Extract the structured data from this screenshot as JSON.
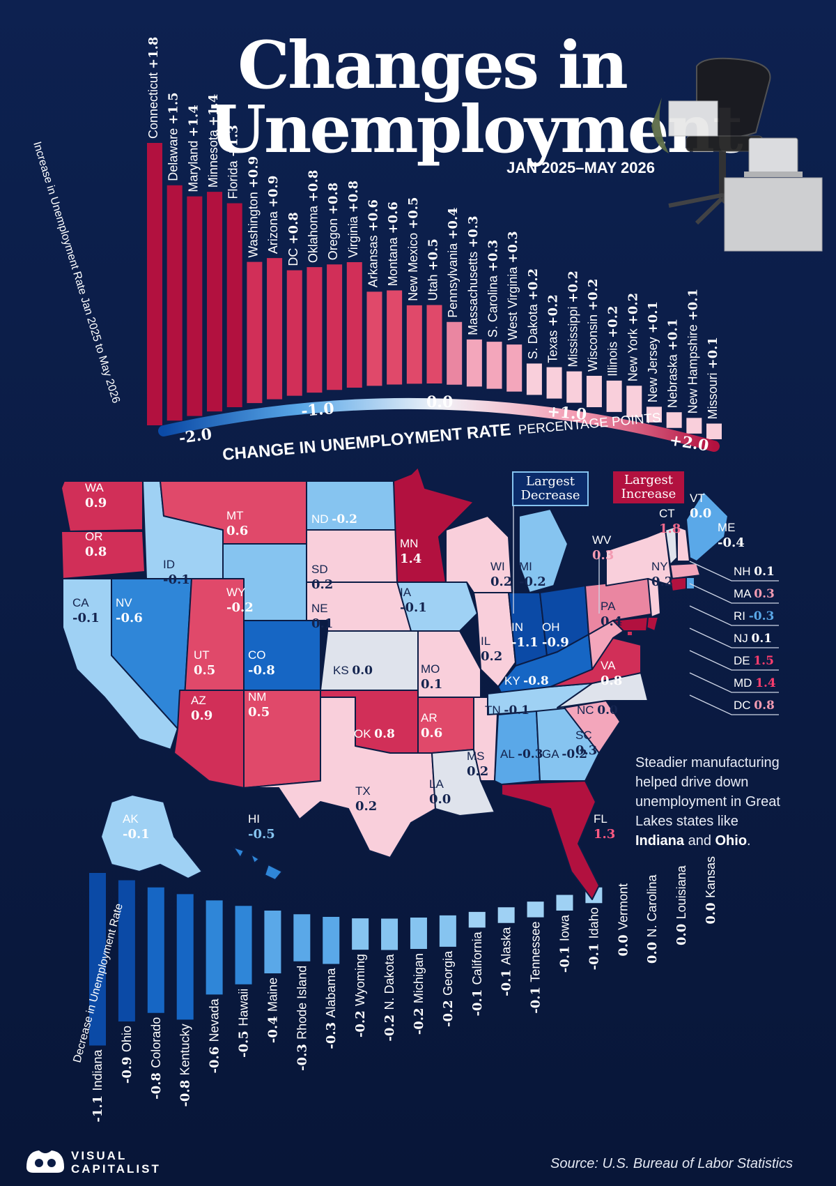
{
  "title": "Changes in Unemployment",
  "subtitle": "JAN 2025–MAY 2026",
  "axis": {
    "label_bold": "CHANGE IN UNEMPLOYMENT RATE",
    "label_light": "PERCENTAGE POINTS",
    "ticks": [
      "-2.0",
      "-1.0",
      "0.0",
      "+1.0",
      "+2.0"
    ]
  },
  "increase_caption": "Increase in Unemployment Rate Jan 2025 to May 2026",
  "decrease_caption": "Decrease in Unemployment Rate",
  "badges": {
    "largest_decrease": "Largest Decrease",
    "largest_increase": "Largest Increase"
  },
  "callout": {
    "text_before": "Steadier manufacturing helped drive down unemployment in Great Lakes states like ",
    "highlight_1": "Indiana",
    "text_mid": " and ",
    "highlight_2": "Ohio",
    "text_after": "."
  },
  "source": "Source: U.S. Bureau of Labor Statistics",
  "logo": {
    "line1": "VISUAL",
    "line2": "CAPITALIST"
  },
  "colors": {
    "increase_strong": "#b2113f",
    "increase_mid": "#e0496a",
    "increase_light": "#f6b8c9",
    "decrease_strong": "#0b4aa6",
    "decrease_mid": "#2f86d8",
    "decrease_light": "#86c4f0",
    "neutral": "#dfe3ec",
    "background": "#0b1c45"
  },
  "chart_data": [
    {
      "type": "bar",
      "title": "Increase in Unemployment Rate Jan 2025 to May 2026",
      "categories": [
        "Connecticut",
        "Delaware",
        "Maryland",
        "Minnesota",
        "Florida",
        "Washington",
        "Arizona",
        "DC",
        "Oklahoma",
        "Oregon",
        "Virginia",
        "Arkansas",
        "Montana",
        "New Mexico",
        "Utah",
        "Pennsylvania",
        "Massachusetts",
        "S. Carolina",
        "West Virginia",
        "S. Dakota",
        "Texas",
        "Mississippi",
        "Wisconsin",
        "Illinois",
        "New York",
        "New Jersey",
        "Nebraska",
        "New Hampshire",
        "Missouri"
      ],
      "values": [
        1.8,
        1.5,
        1.4,
        1.4,
        1.3,
        0.9,
        0.9,
        0.8,
        0.8,
        0.8,
        0.8,
        0.6,
        0.6,
        0.5,
        0.5,
        0.4,
        0.3,
        0.3,
        0.3,
        0.2,
        0.2,
        0.2,
        0.2,
        0.2,
        0.2,
        0.1,
        0.1,
        0.1,
        0.1
      ],
      "labels": [
        "+1.8",
        "+1.5",
        "+1.4",
        "+1.4",
        "+1.3",
        "+0.9",
        "+0.9",
        "+0.8",
        "+0.8",
        "+0.8",
        "+0.8",
        "+0.6",
        "+0.6",
        "+0.5",
        "+0.5",
        "+0.4",
        "+0.3",
        "+0.3",
        "+0.3",
        "+0.2",
        "+0.2",
        "+0.2",
        "+0.2",
        "+0.2",
        "+0.2",
        "+0.1",
        "+0.1",
        "+0.1",
        "+0.1"
      ]
    },
    {
      "type": "bar",
      "title": "Decrease in Unemployment Rate",
      "categories": [
        "Indiana",
        "Ohio",
        "Colorado",
        "Kentucky",
        "Nevada",
        "Hawaii",
        "Maine",
        "Rhode Island",
        "Alabama",
        "Wyoming",
        "N. Dakota",
        "Michigan",
        "Georgia",
        "California",
        "Alaska",
        "Tennessee",
        "Iowa",
        "Idaho",
        "Vermont",
        "N. Carolina",
        "Louisiana",
        "Kansas"
      ],
      "values": [
        -1.1,
        -0.9,
        -0.8,
        -0.8,
        -0.6,
        -0.5,
        -0.4,
        -0.3,
        -0.3,
        -0.2,
        -0.2,
        -0.2,
        -0.2,
        -0.1,
        -0.1,
        -0.1,
        -0.1,
        -0.1,
        0.0,
        0.0,
        0.0,
        0.0
      ],
      "labels": [
        "-1.1",
        "-0.9",
        "-0.8",
        "-0.8",
        "-0.6",
        "-0.5",
        "-0.4",
        "-0.3",
        "-0.3",
        "-0.2",
        "-0.2",
        "-0.2",
        "-0.2",
        "-0.1",
        "-0.1",
        "-0.1",
        "-0.1",
        "-0.1",
        "0.0",
        "0.0",
        "0.0",
        "0.0"
      ]
    },
    {
      "type": "choropleth",
      "title": "",
      "states": [
        {
          "abbr": "WA",
          "value": "0.9"
        },
        {
          "abbr": "OR",
          "value": "0.8"
        },
        {
          "abbr": "CA",
          "value": "-0.1"
        },
        {
          "abbr": "ID",
          "value": "-0.1"
        },
        {
          "abbr": "NV",
          "value": "-0.6"
        },
        {
          "abbr": "MT",
          "value": "0.6"
        },
        {
          "abbr": "WY",
          "value": "-0.2"
        },
        {
          "abbr": "UT",
          "value": "0.5"
        },
        {
          "abbr": "AZ",
          "value": "0.9"
        },
        {
          "abbr": "CO",
          "value": "-0.8"
        },
        {
          "abbr": "NM",
          "value": "0.5"
        },
        {
          "abbr": "ND",
          "value": "-0.2"
        },
        {
          "abbr": "SD",
          "value": "0.2"
        },
        {
          "abbr": "NE",
          "value": "0.1"
        },
        {
          "abbr": "KS",
          "value": "0.0"
        },
        {
          "abbr": "OK",
          "value": "0.8"
        },
        {
          "abbr": "TX",
          "value": "0.2"
        },
        {
          "abbr": "MN",
          "value": "1.4"
        },
        {
          "abbr": "IA",
          "value": "-0.1"
        },
        {
          "abbr": "MO",
          "value": "0.1"
        },
        {
          "abbr": "AR",
          "value": "0.6"
        },
        {
          "abbr": "LA",
          "value": "0.0"
        },
        {
          "abbr": "WI",
          "value": "0.2"
        },
        {
          "abbr": "IL",
          "value": "0.2"
        },
        {
          "abbr": "MS",
          "value": "0.2"
        },
        {
          "abbr": "MI",
          "value": "-0.2"
        },
        {
          "abbr": "IN",
          "value": "-1.1"
        },
        {
          "abbr": "OH",
          "value": "-0.9"
        },
        {
          "abbr": "KY",
          "value": "-0.8"
        },
        {
          "abbr": "TN",
          "value": "-0.1"
        },
        {
          "abbr": "AL",
          "value": "-0.3"
        },
        {
          "abbr": "GA",
          "value": "-0.2"
        },
        {
          "abbr": "FL",
          "value": "1.3"
        },
        {
          "abbr": "SC",
          "value": "0.3"
        },
        {
          "abbr": "NC",
          "value": "0.0"
        },
        {
          "abbr": "VA",
          "value": "0.8"
        },
        {
          "abbr": "WV",
          "value": "0.3"
        },
        {
          "abbr": "PA",
          "value": "0.4"
        },
        {
          "abbr": "NY",
          "value": "0.2"
        },
        {
          "abbr": "VT",
          "value": "0.0"
        },
        {
          "abbr": "ME",
          "value": "-0.4"
        },
        {
          "abbr": "CT",
          "value": "1.8"
        },
        {
          "abbr": "AK",
          "value": "-0.1"
        },
        {
          "abbr": "HI",
          "value": "-0.5"
        },
        {
          "abbr": "NH",
          "value": "0.1"
        },
        {
          "abbr": "MA",
          "value": "0.3"
        },
        {
          "abbr": "RI",
          "value": "-0.3"
        },
        {
          "abbr": "NJ",
          "value": "0.1"
        },
        {
          "abbr": "DE",
          "value": "1.5"
        },
        {
          "abbr": "MD",
          "value": "1.4"
        },
        {
          "abbr": "DC",
          "value": "0.8"
        }
      ]
    }
  ]
}
